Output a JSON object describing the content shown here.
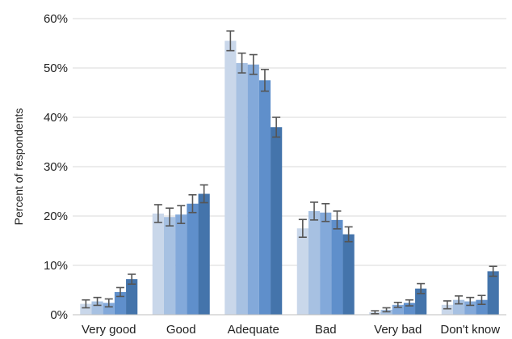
{
  "chart_data": {
    "type": "bar",
    "title": "",
    "xlabel": "",
    "ylabel": "Percent of respondents",
    "ylim": [
      0,
      60
    ],
    "yticks": [
      "0%",
      "10%",
      "20%",
      "30%",
      "40%",
      "50%",
      "60%"
    ],
    "grid": true,
    "legend": "none",
    "categories": [
      "Very good",
      "Good",
      "Adequate",
      "Bad",
      "Very bad",
      "Don't know"
    ],
    "series": [
      {
        "color": "#c9d7ea",
        "values": [
          2.2,
          20.5,
          55.5,
          17.5,
          0.5,
          2.0
        ],
        "errors": [
          0.8,
          1.8,
          2.0,
          1.8,
          0.3,
          0.8
        ]
      },
      {
        "color": "#a7c1e2",
        "values": [
          2.7,
          19.8,
          51.0,
          21.0,
          1.0,
          3.0
        ],
        "errors": [
          0.8,
          1.8,
          2.0,
          1.8,
          0.4,
          0.8
        ]
      },
      {
        "color": "#83a9da",
        "values": [
          2.4,
          20.3,
          50.7,
          20.7,
          2.0,
          2.7
        ],
        "errors": [
          0.8,
          1.8,
          2.0,
          1.8,
          0.5,
          0.8
        ]
      },
      {
        "color": "#5f8fcb",
        "values": [
          4.6,
          22.5,
          47.5,
          19.2,
          2.4,
          3.0
        ],
        "errors": [
          0.9,
          1.8,
          2.2,
          1.8,
          0.6,
          0.9
        ]
      },
      {
        "color": "#4474ab",
        "values": [
          7.2,
          24.5,
          38.0,
          16.3,
          5.3,
          8.8
        ],
        "errors": [
          1.0,
          1.8,
          2.0,
          1.5,
          1.0,
          1.0
        ]
      }
    ]
  }
}
